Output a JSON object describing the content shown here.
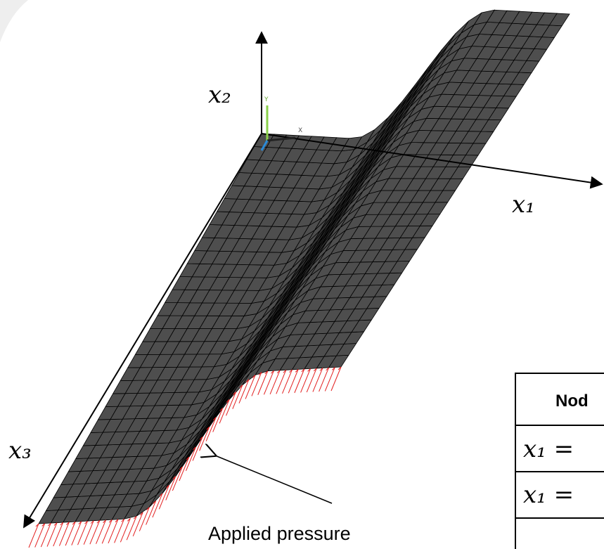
{
  "axes": {
    "x2": "x₂",
    "x1": "x₁",
    "x3": "x₃"
  },
  "triad": {
    "labels": [
      "Y",
      "X"
    ]
  },
  "annotation": "Applied pressure",
  "table": {
    "header": [
      "Nod"
    ],
    "rows": [
      [
        "x₁ ="
      ],
      [
        "x₁ ="
      ]
    ]
  }
}
